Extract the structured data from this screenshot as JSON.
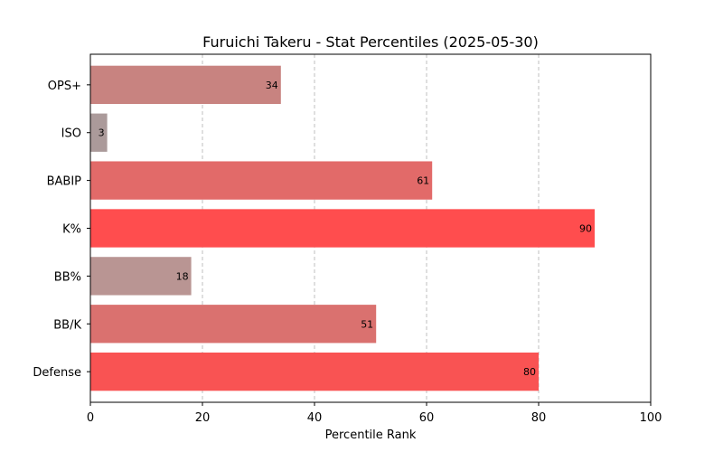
{
  "chart_data": {
    "type": "bar",
    "orientation": "horizontal",
    "title": "Furuichi Takeru - Stat Percentiles (2025-05-30)",
    "xlabel": "Percentile Rank",
    "ylabel": "",
    "xlim": [
      0,
      100
    ],
    "xticks": [
      0,
      20,
      40,
      60,
      80,
      100
    ],
    "grid": "x-dashed",
    "categories": [
      "OPS+",
      "ISO",
      "BABIP",
      "K%",
      "BB%",
      "BB/K",
      "Defense"
    ],
    "values": [
      34,
      3,
      61,
      90,
      18,
      51,
      80
    ],
    "colors": [
      "#c88380",
      "#ab9a9a",
      "#e26a69",
      "#ff4d4e",
      "#b99593",
      "#da716f",
      "#f95353"
    ]
  }
}
